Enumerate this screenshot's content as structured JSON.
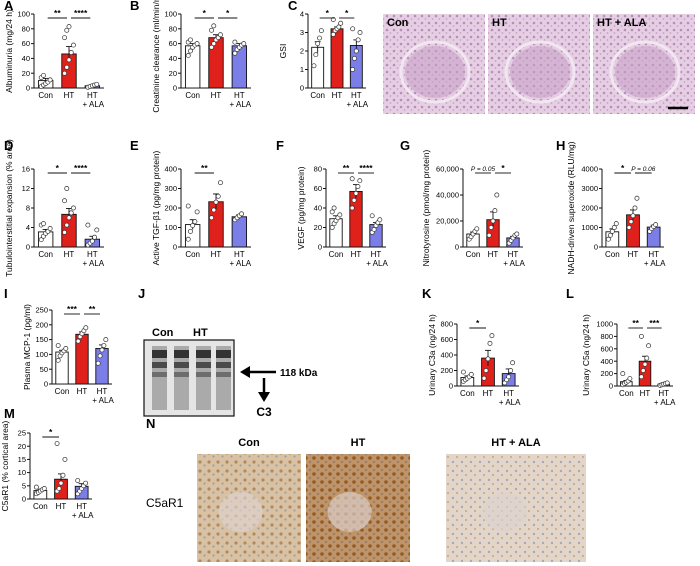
{
  "colors": {
    "con": "#ffffff",
    "ht": "#e0201b",
    "ala": "#7a7ee6",
    "edge": "#111111"
  },
  "chart_data": [
    {
      "id": "A",
      "type": "bar",
      "panel_label": "A",
      "ylabel": "Albuminuria (mg/24 h)",
      "yticks": [
        0,
        20,
        40,
        60,
        80,
        100
      ],
      "ylim": [
        0,
        100
      ],
      "categories": [
        "Con",
        "HT",
        "HT + ALA"
      ],
      "values": [
        10,
        46,
        3
      ],
      "errors": [
        3,
        10,
        1
      ],
      "points": [
        [
          2,
          4,
          6,
          8,
          11,
          14,
          17
        ],
        [
          20,
          28,
          38,
          48,
          58,
          68,
          78,
          83
        ],
        [
          1,
          2,
          3,
          4,
          5
        ]
      ],
      "sig": [
        {
          "from": 0,
          "to": 1,
          "label": "**"
        },
        {
          "from": 1,
          "to": 2,
          "label": "****"
        }
      ]
    },
    {
      "id": "B",
      "type": "bar",
      "panel_label": "B",
      "ylabel": "Creatinine clearance (ml/min/m²)",
      "yticks": [
        0,
        20,
        40,
        60,
        80,
        100
      ],
      "ylim": [
        0,
        100
      ],
      "categories": [
        "Con",
        "HT",
        "HT + ALA"
      ],
      "values": [
        57,
        68,
        57
      ],
      "errors": [
        3,
        4,
        3
      ],
      "points": [
        [
          44,
          50,
          55,
          58,
          60,
          62,
          65
        ],
        [
          55,
          60,
          65,
          68,
          72,
          78,
          84
        ],
        [
          47,
          52,
          55,
          58,
          60,
          62
        ]
      ],
      "sig": [
        {
          "from": 0,
          "to": 1,
          "label": "*"
        },
        {
          "from": 1,
          "to": 2,
          "label": "*"
        }
      ]
    },
    {
      "id": "C",
      "type": "bar",
      "panel_label": "C",
      "ylabel": "GSI",
      "yticks": [
        0,
        1,
        2,
        3,
        4
      ],
      "ylim": [
        0,
        4
      ],
      "categories": [
        "Con",
        "HT",
        "HT + ALA"
      ],
      "values": [
        2.2,
        3.2,
        2.3
      ],
      "errors": [
        0.3,
        0.1,
        0.3
      ],
      "points": [
        [
          1.2,
          1.8,
          2.4,
          2.7,
          3.1
        ],
        [
          2.9,
          3.1,
          3.2,
          3.3,
          3.5,
          3.7
        ],
        [
          1.0,
          1.6,
          2.0,
          2.6,
          3.0,
          3.2
        ]
      ],
      "sig": [
        {
          "from": 0,
          "to": 1,
          "label": "*"
        },
        {
          "from": 1,
          "to": 2,
          "label": "*"
        }
      ]
    },
    {
      "id": "D",
      "type": "bar",
      "panel_label": "D",
      "ylabel": "Tubulointerstitial expansion (% area)",
      "yticks": [
        0,
        4,
        8,
        12,
        16
      ],
      "ylim": [
        0,
        16
      ],
      "categories": [
        "Con",
        "HT",
        "HT + ALA"
      ],
      "values": [
        3.1,
        6.7,
        1.6
      ],
      "errors": [
        0.5,
        1.2,
        0.6
      ],
      "points": [
        [
          1.5,
          2.2,
          2.8,
          3.2,
          3.8,
          4.5,
          4.8
        ],
        [
          3,
          4.5,
          6,
          7,
          8,
          9.5,
          12
        ],
        [
          0.4,
          0.8,
          1.2,
          2,
          3.5,
          4.5
        ]
      ],
      "sig": [
        {
          "from": 0,
          "to": 1,
          "label": "*"
        },
        {
          "from": 1,
          "to": 2,
          "label": "****"
        }
      ]
    },
    {
      "id": "E",
      "type": "bar",
      "panel_label": "E",
      "ylabel": "Active TGF-β1 (pg/mg protein)",
      "yticks": [
        0,
        100,
        200,
        300,
        400
      ],
      "ylim": [
        0,
        400
      ],
      "categories": [
        "Con",
        "HT",
        "HT + ALA"
      ],
      "values": [
        115,
        232,
        155
      ],
      "errors": [
        25,
        40,
        10
      ],
      "points": [
        [
          40,
          80,
          110,
          130,
          180,
          210
        ],
        [
          150,
          190,
          230,
          260,
          330
        ],
        [
          140,
          150,
          160,
          170
        ]
      ],
      "sig": [
        {
          "from": 0,
          "to": 1,
          "label": "**"
        }
      ]
    },
    {
      "id": "F",
      "type": "bar",
      "panel_label": "F",
      "ylabel": "VEGF (pg/mg protein)",
      "yticks": [
        0,
        20,
        40,
        60,
        80
      ],
      "ylim": [
        0,
        80
      ],
      "categories": [
        "Con",
        "HT",
        "HT + ALA"
      ],
      "values": [
        29,
        57,
        23
      ],
      "errors": [
        3,
        7,
        2
      ],
      "points": [
        [
          20,
          24,
          27,
          30,
          33,
          36,
          40
        ],
        [
          40,
          48,
          55,
          62,
          68,
          70
        ],
        [
          15,
          18,
          22,
          25,
          28,
          32
        ]
      ],
      "sig": [
        {
          "from": 0,
          "to": 1,
          "label": "**"
        },
        {
          "from": 1,
          "to": 2,
          "label": "****"
        }
      ]
    },
    {
      "id": "G",
      "type": "bar",
      "panel_label": "G",
      "ylabel": "Nitrotyrosine (pmol/mg protein)",
      "yticks": [
        0,
        20000,
        40000,
        60000
      ],
      "ytick_labels": [
        "0",
        "20,000",
        "40,000",
        "60,000"
      ],
      "ylim": [
        0,
        60000
      ],
      "categories": [
        "Con",
        "HT",
        "HT + ALA"
      ],
      "values": [
        10000,
        21000,
        7000
      ],
      "errors": [
        1500,
        6000,
        1200
      ],
      "points": [
        [
          6000,
          8000,
          10000,
          12000,
          14000
        ],
        [
          9000,
          15000,
          20000,
          28000,
          40000
        ],
        [
          3000,
          5000,
          7000,
          9000,
          10000
        ]
      ],
      "sig": [
        {
          "from": 0,
          "to": 1,
          "label": "P = 0.05"
        },
        {
          "from": 1,
          "to": 2,
          "label": "*"
        }
      ]
    },
    {
      "id": "H",
      "type": "bar",
      "panel_label": "H",
      "ylabel": "NADH-driven superoxide (RLU/mg)",
      "yticks": [
        0,
        1000,
        2000,
        3000,
        4000
      ],
      "ylim": [
        0,
        4000
      ],
      "categories": [
        "Con",
        "HT",
        "HT + ALA"
      ],
      "values": [
        780,
        1650,
        1020
      ],
      "errors": [
        150,
        250,
        100
      ],
      "points": [
        [
          400,
          600,
          800,
          1000,
          1200
        ],
        [
          1000,
          1300,
          1600,
          2000,
          2500
        ],
        [
          800,
          950,
          1050,
          1150
        ]
      ],
      "sig": [
        {
          "from": 0,
          "to": 1,
          "label": "*"
        },
        {
          "from": 1,
          "to": 2,
          "label": "P = 0.06"
        }
      ]
    },
    {
      "id": "I",
      "type": "bar",
      "panel_label": "I",
      "ylabel": "Plasma MCP-1 (pg/ml)",
      "yticks": [
        0,
        50,
        100,
        150,
        200,
        250
      ],
      "ylim": [
        0,
        250
      ],
      "categories": [
        "Con",
        "HT",
        "HT + ALA"
      ],
      "values": [
        108,
        168,
        120
      ],
      "errors": [
        6,
        8,
        12
      ],
      "points": [
        [
          80,
          95,
          105,
          112,
          120,
          130
        ],
        [
          145,
          160,
          170,
          180,
          190
        ],
        [
          70,
          95,
          115,
          130,
          150
        ]
      ],
      "sig": [
        {
          "from": 0,
          "to": 1,
          "label": "***"
        },
        {
          "from": 1,
          "to": 2,
          "label": "**"
        }
      ]
    },
    {
      "id": "K",
      "type": "bar",
      "panel_label": "K",
      "ylabel": "Urinary C3a (ng/24 h)",
      "yticks": [
        0,
        200,
        400,
        600,
        800
      ],
      "ylim": [
        0,
        800
      ],
      "categories": [
        "Con",
        "HT",
        "HT + ALA"
      ],
      "values": [
        110,
        360,
        160
      ],
      "errors": [
        20,
        100,
        60
      ],
      "points": [
        [
          60,
          80,
          100,
          120,
          150,
          180
        ],
        [
          100,
          200,
          350,
          550,
          650
        ],
        [
          40,
          80,
          120,
          200,
          300
        ]
      ],
      "sig": [
        {
          "from": 0,
          "to": 1,
          "label": "*"
        }
      ]
    },
    {
      "id": "L",
      "type": "bar",
      "panel_label": "L",
      "ylabel": "Urinary C5a (ng/24 h)",
      "yticks": [
        0,
        200,
        400,
        600,
        800,
        1000
      ],
      "ylim": [
        0,
        1000
      ],
      "categories": [
        "Con",
        "HT",
        "HT + ALA"
      ],
      "values": [
        70,
        400,
        30
      ],
      "errors": [
        20,
        80,
        8
      ],
      "points": [
        [
          20,
          40,
          60,
          80,
          120,
          200
        ],
        [
          150,
          250,
          350,
          450,
          650,
          800
        ],
        [
          10,
          20,
          30,
          40,
          50
        ]
      ],
      "sig": [
        {
          "from": 0,
          "to": 1,
          "label": "**"
        },
        {
          "from": 1,
          "to": 2,
          "label": "***"
        }
      ]
    },
    {
      "id": "M",
      "type": "bar",
      "panel_label": "M",
      "ylabel": "C5aR1 (% cortical area)",
      "yticks": [
        0,
        5,
        10,
        15,
        20,
        25
      ],
      "ylim": [
        0,
        25
      ],
      "categories": [
        "Con",
        "HT",
        "HT + ALA"
      ],
      "values": [
        3.2,
        7.5,
        4.8
      ],
      "errors": [
        0.5,
        2.0,
        1.0
      ],
      "points": [
        [
          2,
          2.5,
          3,
          3.5,
          4,
          4.5
        ],
        [
          3,
          4,
          6,
          9,
          15,
          21
        ],
        [
          2,
          3,
          4,
          5,
          6,
          7
        ]
      ],
      "sig": [
        {
          "from": 0,
          "to": 1,
          "label": "*"
        }
      ]
    }
  ],
  "panel_C_images": {
    "labels": [
      "Con",
      "HT",
      "HT + ALA"
    ]
  },
  "panel_J": {
    "panel_label": "J",
    "lanes": [
      "Con",
      "HT"
    ],
    "marker": "118 kDa",
    "protein": "C3"
  },
  "panel_N": {
    "panel_label": "N",
    "row_label": "C5aR1",
    "labels": [
      "Con",
      "HT",
      "HT + ALA"
    ]
  }
}
